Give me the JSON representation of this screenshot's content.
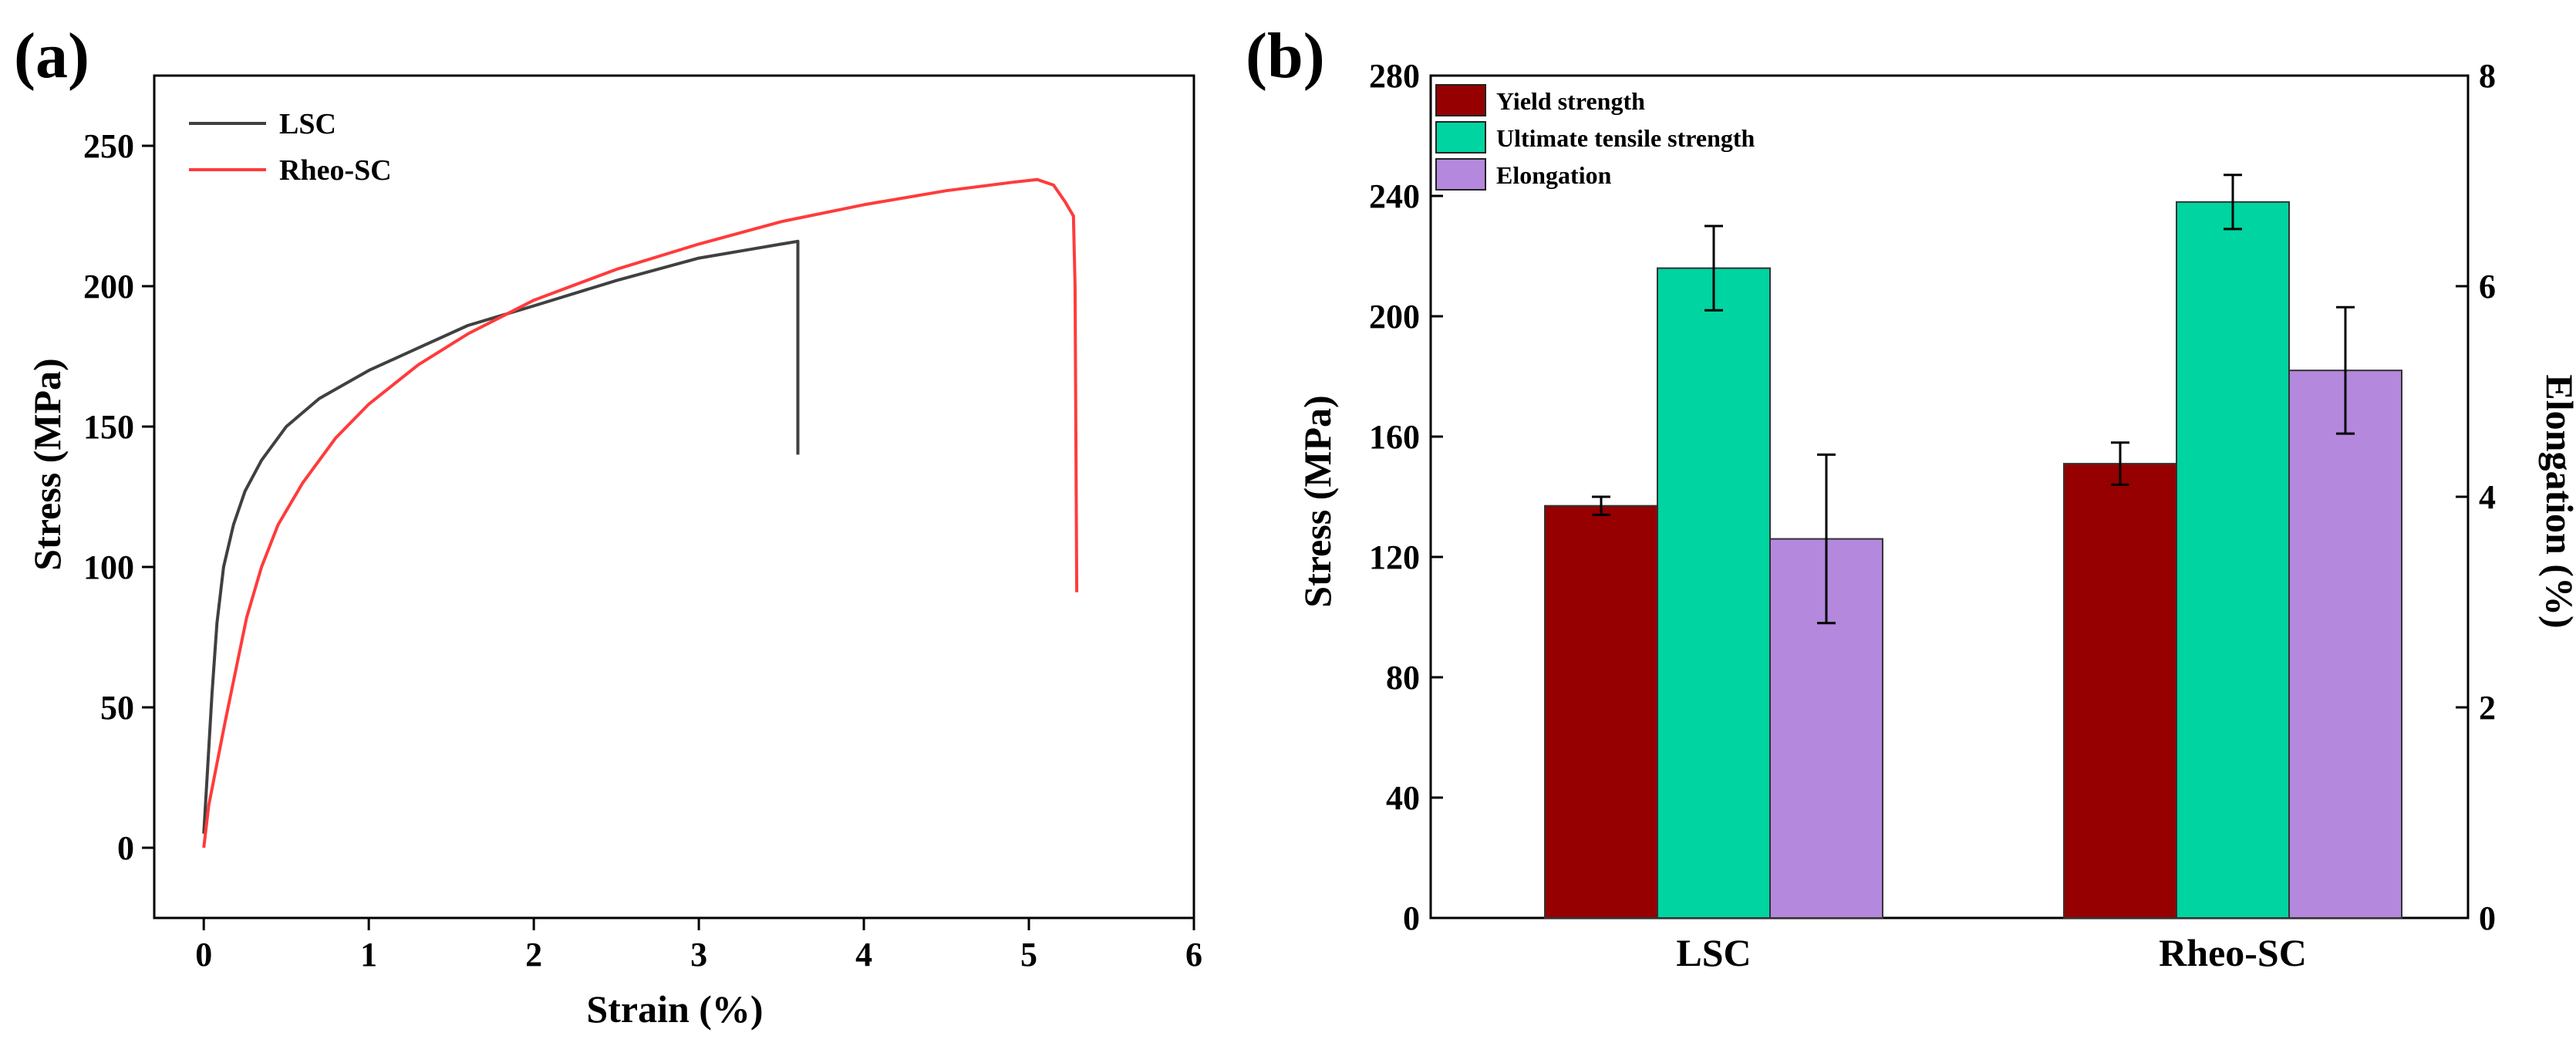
{
  "figure": {
    "panel_a_label": "(a)",
    "panel_b_label": "(b)"
  },
  "chart_data": [
    {
      "id": "a",
      "type": "line",
      "title": "",
      "xlabel": "Strain (%)",
      "ylabel": "Stress (MPa)",
      "xlim": [
        -0.3,
        6
      ],
      "ylim": [
        -25,
        275
      ],
      "xticks": [
        0,
        1,
        2,
        3,
        4,
        5,
        6
      ],
      "yticks": [
        0,
        50,
        100,
        150,
        200,
        250
      ],
      "legend": "top-left",
      "grid": false,
      "series": [
        {
          "name": "LSC",
          "color": "#404040",
          "points": [
            [
              0,
              5
            ],
            [
              0.02,
              25
            ],
            [
              0.05,
              55
            ],
            [
              0.08,
              80
            ],
            [
              0.12,
              100
            ],
            [
              0.18,
              115
            ],
            [
              0.25,
              127
            ],
            [
              0.35,
              138
            ],
            [
              0.5,
              150
            ],
            [
              0.7,
              160
            ],
            [
              1.0,
              170
            ],
            [
              1.3,
              178
            ],
            [
              1.6,
              186
            ],
            [
              2.0,
              193
            ],
            [
              2.5,
              202
            ],
            [
              3.0,
              210
            ],
            [
              3.3,
              213
            ],
            [
              3.5,
              215
            ],
            [
              3.6,
              216
            ],
            [
              3.6,
              140
            ]
          ]
        },
        {
          "name": "Rheo-SC",
          "color": "#ff3b3b",
          "points": [
            [
              0,
              0
            ],
            [
              0.03,
              15
            ],
            [
              0.08,
              30
            ],
            [
              0.13,
              45
            ],
            [
              0.2,
              65
            ],
            [
              0.26,
              82
            ],
            [
              0.35,
              100
            ],
            [
              0.45,
              115
            ],
            [
              0.6,
              130
            ],
            [
              0.8,
              146
            ],
            [
              1.0,
              158
            ],
            [
              1.3,
              172
            ],
            [
              1.6,
              183
            ],
            [
              2.0,
              195
            ],
            [
              2.5,
              206
            ],
            [
              3.0,
              215
            ],
            [
              3.5,
              223
            ],
            [
              4.0,
              229
            ],
            [
              4.5,
              234
            ],
            [
              4.9,
              237
            ],
            [
              5.05,
              238
            ],
            [
              5.15,
              236
            ],
            [
              5.22,
              230
            ],
            [
              5.27,
              225
            ],
            [
              5.28,
              200
            ],
            [
              5.29,
              91
            ]
          ]
        }
      ]
    },
    {
      "id": "b",
      "type": "bar",
      "title": "",
      "categories": [
        "LSC",
        "Rheo-SC"
      ],
      "ylabel": "Stress (MPa)",
      "y2label": "Elongation (%)",
      "ylim": [
        0,
        280
      ],
      "yticks": [
        0,
        40,
        80,
        120,
        160,
        200,
        240,
        280
      ],
      "y2lim": [
        0,
        8
      ],
      "y2ticks": [
        0,
        2,
        4,
        6,
        8
      ],
      "legend": "top-left",
      "grid": false,
      "series": [
        {
          "name": "Yield strength",
          "axis": "left",
          "color": "#960000",
          "values": [
            137,
            151
          ],
          "errors": [
            3,
            7
          ]
        },
        {
          "name": "Ultimate tensile strength",
          "axis": "left",
          "color": "#00d4a0",
          "values": [
            216,
            238
          ],
          "errors": [
            14,
            9
          ]
        },
        {
          "name": "Elongation",
          "axis": "right",
          "color": "#b388dd",
          "values": [
            3.6,
            5.2
          ],
          "errors": [
            0.8,
            0.6
          ]
        }
      ]
    }
  ]
}
